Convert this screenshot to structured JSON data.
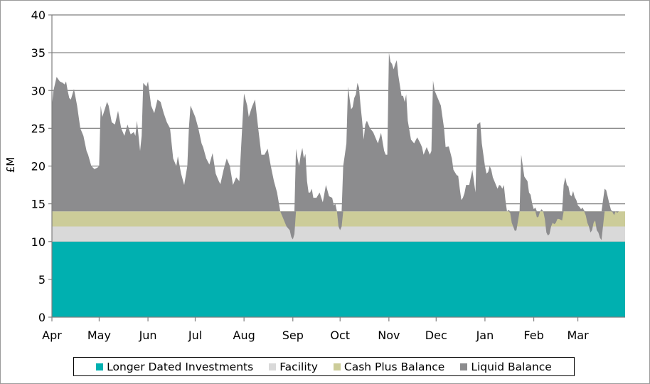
{
  "chart_data": {
    "type": "area",
    "ylabel": "£M",
    "ylim": [
      0,
      40
    ],
    "yticks": [
      "0",
      "5",
      "10",
      "15",
      "20",
      "25",
      "30",
      "35",
      "40"
    ],
    "xlim": [
      0,
      364
    ],
    "months": [
      {
        "label": "Apr",
        "day": 0
      },
      {
        "label": "May",
        "day": 30
      },
      {
        "label": "Jun",
        "day": 61
      },
      {
        "label": "Jul",
        "day": 91
      },
      {
        "label": "Aug",
        "day": 122
      },
      {
        "label": "Sep",
        "day": 153
      },
      {
        "label": "Oct",
        "day": 183
      },
      {
        "label": "Nov",
        "day": 214
      },
      {
        "label": "Dec",
        "day": 244
      },
      {
        "label": "Jan",
        "day": 275
      },
      {
        "label": "Feb",
        "day": 306
      },
      {
        "label": "Mar",
        "day": 334
      }
    ],
    "grid": true,
    "legend_position": "bottom",
    "series": [
      {
        "name": "Longer Dated Investments",
        "color": "#00b0b0",
        "constant": 10
      },
      {
        "name": "Facility",
        "color": "#d9d9d9",
        "constant": 2
      },
      {
        "name": "Cash Plus Balance",
        "color": "#cccc99",
        "constant": 2
      },
      {
        "name": "Liquid Balance",
        "color": "#8c8c8e",
        "points": [
          [
            0,
            28
          ],
          [
            1,
            30
          ],
          [
            3,
            31.8
          ],
          [
            5,
            31.2
          ],
          [
            7,
            31
          ],
          [
            8,
            30.8
          ],
          [
            9,
            31.2
          ],
          [
            10,
            30
          ],
          [
            11,
            29
          ],
          [
            12,
            28.8
          ],
          [
            13,
            29.5
          ],
          [
            14,
            30.2
          ],
          [
            16,
            28
          ],
          [
            18,
            25
          ],
          [
            20,
            24
          ],
          [
            22,
            22
          ],
          [
            23,
            21.5
          ],
          [
            25,
            20
          ],
          [
            27,
            19.6
          ],
          [
            29,
            19.8
          ],
          [
            30,
            20
          ],
          [
            31,
            28
          ],
          [
            32,
            26.5
          ],
          [
            34,
            27.8
          ],
          [
            35,
            28.5
          ],
          [
            36,
            28
          ],
          [
            38,
            25.8
          ],
          [
            40,
            25.5
          ],
          [
            42,
            27.3
          ],
          [
            44,
            25
          ],
          [
            46,
            24
          ],
          [
            48,
            25.5
          ],
          [
            50,
            24.2
          ],
          [
            52,
            24.5
          ],
          [
            53,
            24
          ],
          [
            54,
            26
          ],
          [
            56,
            22
          ],
          [
            57,
            24
          ],
          [
            58,
            31
          ],
          [
            60,
            30.5
          ],
          [
            61,
            31.2
          ],
          [
            63,
            28
          ],
          [
            65,
            27
          ],
          [
            67,
            28.8
          ],
          [
            69,
            28.5
          ],
          [
            71,
            27
          ],
          [
            73,
            25.8
          ],
          [
            75,
            25
          ],
          [
            77,
            21
          ],
          [
            79,
            20
          ],
          [
            80,
            21.3
          ],
          [
            82,
            19
          ],
          [
            84,
            17.5
          ],
          [
            86,
            20
          ],
          [
            87,
            25
          ],
          [
            88,
            28
          ],
          [
            89,
            27.5
          ],
          [
            91,
            26.5
          ],
          [
            93,
            25
          ],
          [
            95,
            23
          ],
          [
            96,
            22.5
          ],
          [
            98,
            21
          ],
          [
            100,
            20.2
          ],
          [
            102,
            21.7
          ],
          [
            104,
            19
          ],
          [
            106,
            18
          ],
          [
            107,
            17.6
          ],
          [
            109,
            19.5
          ],
          [
            111,
            21
          ],
          [
            113,
            20
          ],
          [
            115,
            17.5
          ],
          [
            117,
            18.5
          ],
          [
            119,
            18
          ],
          [
            122,
            29.6
          ],
          [
            124,
            28
          ],
          [
            125,
            26.5
          ],
          [
            127,
            27.8
          ],
          [
            129,
            28.8
          ],
          [
            131,
            25
          ],
          [
            133,
            21.5
          ],
          [
            135,
            21.5
          ],
          [
            137,
            22.3
          ],
          [
            139,
            20
          ],
          [
            141,
            18
          ],
          [
            143,
            16.5
          ],
          [
            145,
            14
          ],
          [
            147,
            13
          ],
          [
            149,
            12
          ],
          [
            151,
            11.5
          ],
          [
            152,
            10.6
          ],
          [
            153,
            10.3
          ],
          [
            154,
            11
          ],
          [
            155,
            22.3
          ],
          [
            156,
            21
          ],
          [
            157,
            20
          ],
          [
            158,
            21.5
          ],
          [
            159,
            22.4
          ],
          [
            160,
            21
          ],
          [
            161,
            21.6
          ],
          [
            162,
            18
          ],
          [
            163,
            16.5
          ],
          [
            164,
            16.5
          ],
          [
            165,
            17
          ],
          [
            166,
            15.8
          ],
          [
            168,
            15.8
          ],
          [
            170,
            16.5
          ],
          [
            172,
            15.2
          ],
          [
            174,
            17.5
          ],
          [
            176,
            16
          ],
          [
            178,
            15.8
          ],
          [
            179,
            14.8
          ],
          [
            180,
            15
          ],
          [
            181,
            14
          ],
          [
            182,
            12
          ],
          [
            183,
            11.5
          ],
          [
            184,
            12
          ],
          [
            185,
            20
          ],
          [
            186,
            21.5
          ],
          [
            187,
            23
          ],
          [
            188,
            30.5
          ],
          [
            189,
            29
          ],
          [
            190,
            27.5
          ],
          [
            191,
            27.8
          ],
          [
            192,
            29
          ],
          [
            193,
            29.5
          ],
          [
            194,
            31
          ],
          [
            195,
            30.4
          ],
          [
            196,
            28
          ],
          [
            197,
            26
          ],
          [
            198,
            23.5
          ],
          [
            199,
            25.5
          ],
          [
            200,
            26
          ],
          [
            202,
            25
          ],
          [
            204,
            24.5
          ],
          [
            206,
            23.5
          ],
          [
            207,
            23
          ],
          [
            209,
            24.4
          ],
          [
            211,
            22
          ],
          [
            212,
            21.5
          ],
          [
            213,
            21.5
          ],
          [
            214,
            35
          ],
          [
            215,
            33.8
          ],
          [
            216,
            33.5
          ],
          [
            217,
            32.8
          ],
          [
            218,
            33.5
          ],
          [
            219,
            34
          ],
          [
            220,
            32
          ],
          [
            222,
            29.3
          ],
          [
            223,
            29.3
          ],
          [
            224,
            28.5
          ],
          [
            225,
            29.5
          ],
          [
            226,
            26
          ],
          [
            228,
            23.5
          ],
          [
            230,
            23
          ],
          [
            232,
            23.8
          ],
          [
            234,
            23
          ],
          [
            235,
            22.5
          ],
          [
            236,
            21.5
          ],
          [
            238,
            22.5
          ],
          [
            240,
            21.5
          ],
          [
            241,
            22
          ],
          [
            242,
            31.3
          ],
          [
            243,
            30
          ],
          [
            245,
            29
          ],
          [
            247,
            28
          ],
          [
            249,
            25
          ],
          [
            250,
            22.5
          ],
          [
            252,
            22.6
          ],
          [
            254,
            21
          ],
          [
            255,
            19.5
          ],
          [
            257,
            18.8
          ],
          [
            258,
            18.7
          ],
          [
            259,
            17
          ],
          [
            260,
            15.5
          ],
          [
            261,
            15.8
          ],
          [
            262,
            16.4
          ],
          [
            263,
            17.5
          ],
          [
            265,
            17.5
          ],
          [
            267,
            19.5
          ],
          [
            269,
            16.5
          ],
          [
            270,
            25.5
          ],
          [
            272,
            25.8
          ],
          [
            273,
            23
          ],
          [
            275,
            20
          ],
          [
            276,
            19
          ],
          [
            277,
            19.2
          ],
          [
            278,
            20
          ],
          [
            279,
            19.5
          ],
          [
            280,
            18.5
          ],
          [
            281,
            18
          ],
          [
            282,
            17.5
          ],
          [
            283,
            17
          ],
          [
            284,
            17.5
          ],
          [
            285,
            17.4
          ],
          [
            286,
            17
          ],
          [
            287,
            17.5
          ],
          [
            288,
            15.5
          ],
          [
            289,
            14
          ],
          [
            290,
            14.2
          ],
          [
            291,
            13.8
          ],
          [
            292,
            12.5
          ],
          [
            294,
            11.4
          ],
          [
            295,
            11.5
          ],
          [
            297,
            14
          ],
          [
            298,
            21.5
          ],
          [
            299,
            20
          ],
          [
            300,
            18.6
          ],
          [
            302,
            18
          ],
          [
            303,
            16.5
          ],
          [
            304,
            16.2
          ],
          [
            305,
            15
          ],
          [
            306,
            14.3
          ],
          [
            307,
            14.5
          ],
          [
            308,
            13.2
          ],
          [
            309,
            13.3
          ],
          [
            310,
            14
          ],
          [
            311,
            14.3
          ],
          [
            312,
            14
          ],
          [
            313,
            13
          ],
          [
            314,
            11.2
          ],
          [
            315,
            10.8
          ],
          [
            316,
            11
          ],
          [
            317,
            12
          ],
          [
            318,
            12.5
          ],
          [
            319,
            12.3
          ],
          [
            320,
            12.5
          ],
          [
            321,
            13
          ],
          [
            322,
            13
          ],
          [
            324,
            12.8
          ],
          [
            325,
            17.5
          ],
          [
            326,
            18.5
          ],
          [
            327,
            17.5
          ],
          [
            328,
            17.3
          ],
          [
            329,
            16.2
          ],
          [
            330,
            16
          ],
          [
            331,
            16.7
          ],
          [
            332,
            15.9
          ],
          [
            333,
            15.5
          ],
          [
            334,
            14.8
          ],
          [
            335,
            14.6
          ],
          [
            336,
            14.3
          ],
          [
            337,
            14.5
          ],
          [
            338,
            14.1
          ],
          [
            339,
            13.5
          ],
          [
            340,
            12.5
          ],
          [
            341,
            12
          ],
          [
            342,
            11.2
          ],
          [
            343,
            11.5
          ],
          [
            344,
            12.5
          ],
          [
            345,
            12.8
          ],
          [
            346,
            11.5
          ],
          [
            347,
            11.2
          ],
          [
            348,
            10.5
          ],
          [
            349,
            10.2
          ],
          [
            351,
            17
          ],
          [
            352,
            16.8
          ],
          [
            354,
            15
          ],
          [
            355,
            14.2
          ],
          [
            356,
            13.9
          ],
          [
            357,
            13.5
          ],
          [
            358,
            14
          ],
          [
            359,
            13.8
          ],
          [
            360,
            14
          ],
          [
            364,
            14
          ]
        ]
      }
    ]
  }
}
